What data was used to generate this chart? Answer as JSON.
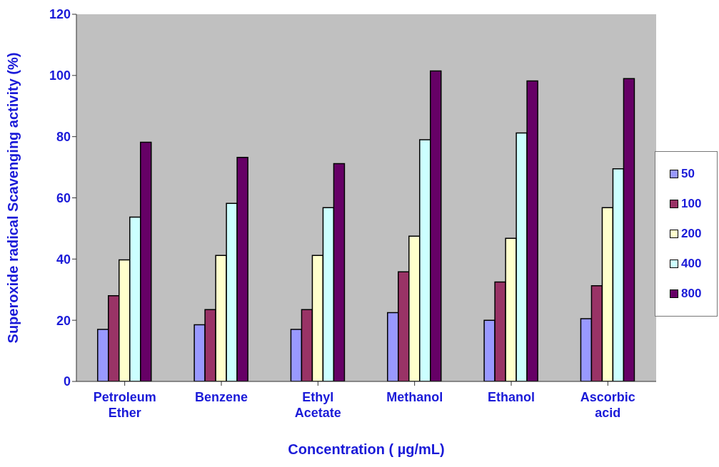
{
  "chart_data": {
    "type": "bar",
    "xlabel": "Concentration ( µg/mL)",
    "ylabel": "Superoxide radical Scavenging activity (%)",
    "categories": [
      "Petroleum Ether",
      "Benzene",
      "Ethyl Acetate",
      "Methanol",
      "Ethanol",
      "Ascorbic acid"
    ],
    "series": [
      {
        "name": "50",
        "color": "#9999ff",
        "values": [
          17,
          18.5,
          17,
          22.5,
          20,
          20.5
        ]
      },
      {
        "name": "100",
        "color": "#993366",
        "values": [
          28,
          23.5,
          23.5,
          35.8,
          32.5,
          31.3
        ]
      },
      {
        "name": "200",
        "color": "#ffffcc",
        "values": [
          39.7,
          41.2,
          41.2,
          47.5,
          46.8,
          56.8
        ]
      },
      {
        "name": "400",
        "color": "#ccffff",
        "values": [
          53.7,
          58.2,
          56.8,
          79,
          81.2,
          69.5
        ]
      },
      {
        "name": "800",
        "color": "#660066",
        "values": [
          78.2,
          73.2,
          71.2,
          101.5,
          98.2,
          99
        ]
      }
    ],
    "ylim": [
      0,
      120
    ],
    "yticks": [
      0,
      20,
      40,
      60,
      80,
      100,
      120
    ],
    "grid": false,
    "legend": "right"
  }
}
